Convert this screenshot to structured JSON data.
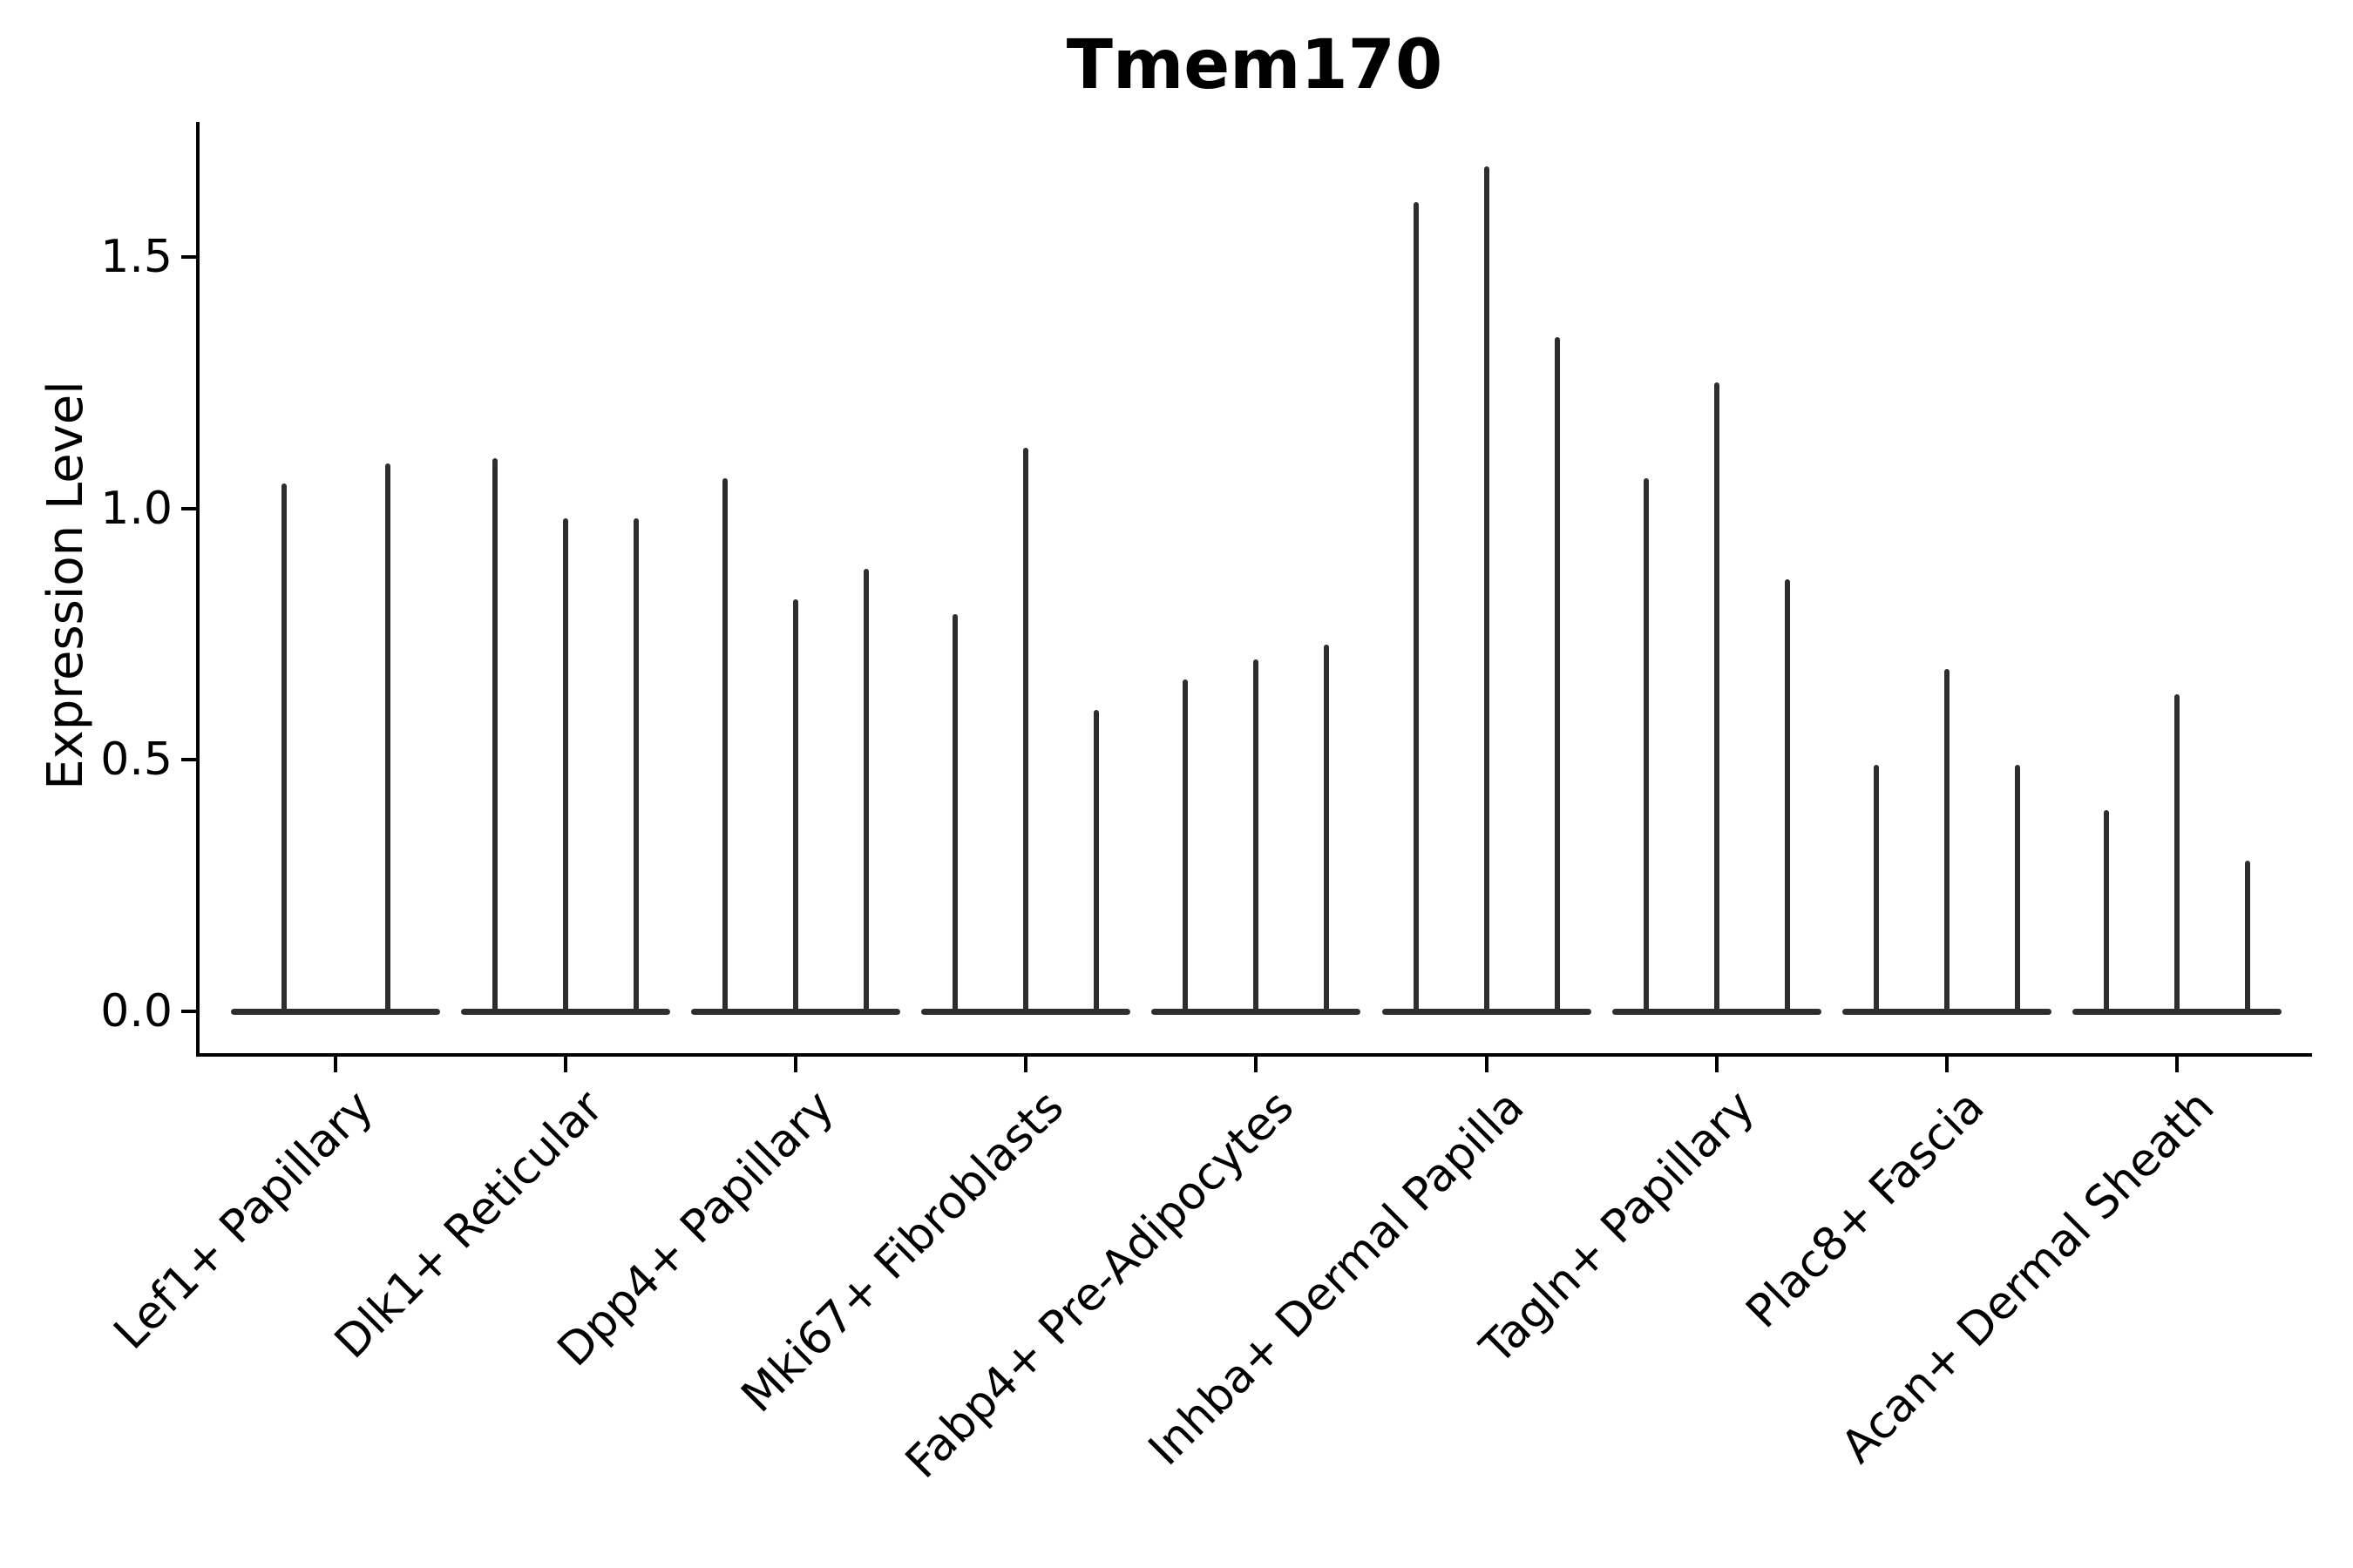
{
  "figure": {
    "title": "Tmem170",
    "ylabel": "Expression Level"
  },
  "colors": {
    "violin": "#2e2e2e",
    "axis": "#000000",
    "text": "#000000",
    "background": "#ffffff"
  },
  "chart_data": {
    "type": "violin",
    "title": "Tmem170",
    "xlabel": "",
    "ylabel": "Expression Level",
    "ylim": [
      -0.09,
      1.78
    ],
    "grid": false,
    "legend": "none",
    "yticks": [
      {
        "value": 0.0,
        "label": "0.0"
      },
      {
        "value": 0.5,
        "label": "0.5"
      },
      {
        "value": 1.0,
        "label": "1.0"
      },
      {
        "value": 1.5,
        "label": "1.5"
      }
    ],
    "categories": [
      "Lef1+ Papillary",
      "Dlk1+ Reticular",
      "Dpp4+ Papillary",
      "Mki67+ Fibroblasts",
      "Fabp4+ Pre-Adipocytes",
      "Inhba+ Dermal Papilla",
      "Tagln+ Papillary",
      "Plac8+ Fascia",
      "Acan+ Dermal Sheath"
    ],
    "baseline_value": 0.0,
    "series": [
      {
        "category": "Lef1+ Papillary",
        "violin_peaks": [
          1.05,
          1.09
        ]
      },
      {
        "category": "Dlk1+ Reticular",
        "violin_peaks": [
          1.1,
          0.98,
          0.98
        ]
      },
      {
        "category": "Dpp4+ Papillary",
        "violin_peaks": [
          1.06,
          0.82,
          0.88
        ]
      },
      {
        "category": "Mki67+ Fibroblasts",
        "violin_peaks": [
          0.79,
          1.12,
          0.6
        ]
      },
      {
        "category": "Fabp4+ Pre-Adipocytes",
        "violin_peaks": [
          0.66,
          0.7,
          0.73
        ]
      },
      {
        "category": "Inhba+ Dermal Papilla",
        "violin_peaks": [
          1.61,
          1.68,
          1.34
        ]
      },
      {
        "category": "Tagln+ Papillary",
        "violin_peaks": [
          1.06,
          1.25,
          0.86
        ]
      },
      {
        "category": "Plac8+ Fascia",
        "violin_peaks": [
          0.49,
          0.68,
          0.49
        ]
      },
      {
        "category": "Acan+ Dermal Sheath",
        "violin_peaks": [
          0.4,
          0.63,
          0.3
        ]
      }
    ]
  }
}
